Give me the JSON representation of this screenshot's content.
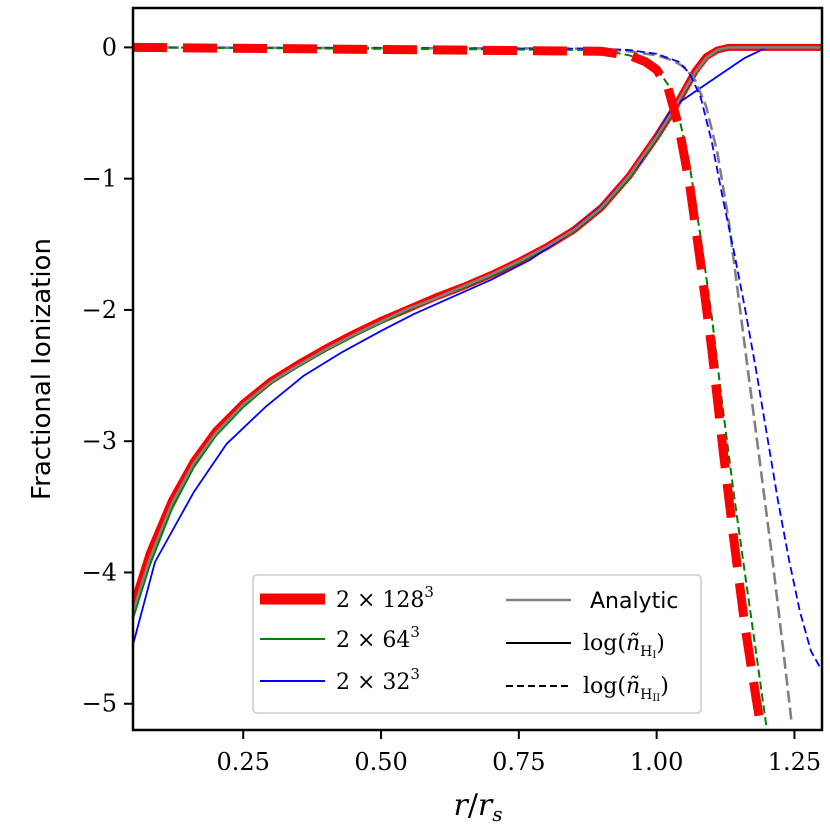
{
  "chart_data": {
    "type": "line",
    "title": "",
    "xlabel": "r/r_s",
    "ylabel": "Fractional Ionization",
    "xlim": [
      0.05,
      1.3
    ],
    "ylim": [
      -5.2,
      0.3
    ],
    "xticks": [
      0.25,
      0.5,
      0.75,
      1.0,
      1.25
    ],
    "xtick_labels": [
      "0.25",
      "0.50",
      "0.75",
      "1.00",
      "1.25"
    ],
    "yticks": [
      0,
      -1,
      -2,
      -3,
      -4,
      -5
    ],
    "ytick_labels": [
      "0",
      "−1",
      "−2",
      "−3",
      "−4",
      "−5"
    ],
    "colors": {
      "res128": "#ff0000",
      "res64": "#008000",
      "res32": "#0000ff",
      "analytic": "#808080"
    },
    "series": [
      {
        "name": "2 × 128³ neutral",
        "resolution": "res128",
        "quantity": "HI",
        "values": [
          [
            0.05,
            -4.25
          ],
          [
            0.08,
            -3.85
          ],
          [
            0.12,
            -3.45
          ],
          [
            0.16,
            -3.15
          ],
          [
            0.2,
            -2.92
          ],
          [
            0.25,
            -2.71
          ],
          [
            0.3,
            -2.54
          ],
          [
            0.35,
            -2.41
          ],
          [
            0.4,
            -2.29
          ],
          [
            0.45,
            -2.18
          ],
          [
            0.5,
            -2.08
          ],
          [
            0.55,
            -1.99
          ],
          [
            0.6,
            -1.9
          ],
          [
            0.65,
            -1.82
          ],
          [
            0.7,
            -1.73
          ],
          [
            0.75,
            -1.63
          ],
          [
            0.8,
            -1.52
          ],
          [
            0.85,
            -1.39
          ],
          [
            0.9,
            -1.22
          ],
          [
            0.95,
            -0.98
          ],
          [
            1.0,
            -0.68
          ],
          [
            1.03,
            -0.48
          ],
          [
            1.05,
            -0.33
          ],
          [
            1.07,
            -0.18
          ],
          [
            1.09,
            -0.07
          ],
          [
            1.11,
            -0.02
          ],
          [
            1.13,
            0.0
          ],
          [
            1.3,
            0.0
          ]
        ]
      },
      {
        "name": "2 × 64³ neutral",
        "resolution": "res64",
        "quantity": "HI",
        "values": [
          [
            0.05,
            -4.35
          ],
          [
            0.08,
            -3.95
          ],
          [
            0.12,
            -3.52
          ],
          [
            0.16,
            -3.2
          ],
          [
            0.2,
            -2.96
          ],
          [
            0.25,
            -2.74
          ],
          [
            0.3,
            -2.56
          ],
          [
            0.35,
            -2.43
          ],
          [
            0.4,
            -2.31
          ],
          [
            0.45,
            -2.2
          ],
          [
            0.5,
            -2.1
          ],
          [
            0.55,
            -2.0
          ],
          [
            0.6,
            -1.91
          ],
          [
            0.65,
            -1.83
          ],
          [
            0.7,
            -1.74
          ],
          [
            0.75,
            -1.64
          ],
          [
            0.8,
            -1.53
          ],
          [
            0.85,
            -1.4
          ],
          [
            0.9,
            -1.23
          ],
          [
            0.95,
            -1.0
          ],
          [
            1.0,
            -0.7
          ],
          [
            1.03,
            -0.49
          ],
          [
            1.05,
            -0.34
          ],
          [
            1.07,
            -0.2
          ],
          [
            1.09,
            -0.08
          ],
          [
            1.11,
            -0.03
          ],
          [
            1.13,
            0.0
          ],
          [
            1.3,
            0.0
          ]
        ]
      },
      {
        "name": "2 × 32³ neutral",
        "resolution": "res32",
        "quantity": "HI",
        "values": [
          [
            0.05,
            -4.55
          ],
          [
            0.09,
            -3.92
          ],
          [
            0.16,
            -3.39
          ],
          [
            0.22,
            -3.02
          ],
          [
            0.29,
            -2.74
          ],
          [
            0.36,
            -2.5
          ],
          [
            0.43,
            -2.32
          ],
          [
            0.5,
            -2.16
          ],
          [
            0.56,
            -2.03
          ],
          [
            0.63,
            -1.9
          ],
          [
            0.7,
            -1.77
          ],
          [
            0.77,
            -1.62
          ],
          [
            0.83,
            -1.45
          ],
          [
            0.9,
            -1.21
          ],
          [
            0.97,
            -0.88
          ],
          [
            1.03,
            -0.45
          ],
          [
            1.1,
            -0.25
          ],
          [
            1.16,
            -0.08
          ],
          [
            1.2,
            0.0
          ],
          [
            1.3,
            0.0
          ]
        ]
      },
      {
        "name": "Analytic neutral",
        "resolution": "analytic",
        "quantity": "HI",
        "values": [
          [
            0.05,
            -4.3
          ],
          [
            0.08,
            -3.9
          ],
          [
            0.12,
            -3.48
          ],
          [
            0.16,
            -3.17
          ],
          [
            0.2,
            -2.94
          ],
          [
            0.25,
            -2.72
          ],
          [
            0.3,
            -2.55
          ],
          [
            0.35,
            -2.42
          ],
          [
            0.4,
            -2.3
          ],
          [
            0.45,
            -2.19
          ],
          [
            0.5,
            -2.09
          ],
          [
            0.55,
            -1.99
          ],
          [
            0.6,
            -1.91
          ],
          [
            0.65,
            -1.82
          ],
          [
            0.7,
            -1.73
          ],
          [
            0.75,
            -1.63
          ],
          [
            0.8,
            -1.52
          ],
          [
            0.85,
            -1.39
          ],
          [
            0.9,
            -1.22
          ],
          [
            0.95,
            -0.98
          ],
          [
            1.0,
            -0.68
          ],
          [
            1.03,
            -0.48
          ],
          [
            1.05,
            -0.33
          ],
          [
            1.07,
            -0.19
          ],
          [
            1.09,
            -0.08
          ],
          [
            1.11,
            -0.02
          ],
          [
            1.13,
            0.0
          ],
          [
            1.3,
            0.0
          ]
        ]
      },
      {
        "name": "Analytic ionized",
        "resolution": "analytic",
        "quantity": "HII",
        "values": [
          [
            0.05,
            0.0
          ],
          [
            0.9,
            -0.01
          ],
          [
            0.95,
            -0.03
          ],
          [
            1.0,
            -0.06
          ],
          [
            1.03,
            -0.1
          ],
          [
            1.05,
            -0.15
          ],
          [
            1.07,
            -0.25
          ],
          [
            1.09,
            -0.45
          ],
          [
            1.11,
            -0.8
          ],
          [
            1.13,
            -1.3
          ],
          [
            1.15,
            -1.95
          ],
          [
            1.17,
            -2.6
          ],
          [
            1.19,
            -3.25
          ],
          [
            1.21,
            -3.9
          ],
          [
            1.23,
            -4.6
          ],
          [
            1.245,
            -5.15
          ]
        ]
      },
      {
        "name": "2 × 32³ ionized",
        "resolution": "res32",
        "quantity": "HII",
        "values": [
          [
            0.05,
            0.0
          ],
          [
            0.9,
            -0.01
          ],
          [
            0.95,
            -0.02
          ],
          [
            1.0,
            -0.05
          ],
          [
            1.04,
            -0.11
          ],
          [
            1.06,
            -0.2
          ],
          [
            1.08,
            -0.38
          ],
          [
            1.1,
            -0.72
          ],
          [
            1.12,
            -1.15
          ],
          [
            1.14,
            -1.55
          ],
          [
            1.16,
            -1.98
          ],
          [
            1.18,
            -2.45
          ],
          [
            1.2,
            -2.95
          ],
          [
            1.22,
            -3.45
          ],
          [
            1.24,
            -3.9
          ],
          [
            1.26,
            -4.3
          ],
          [
            1.28,
            -4.6
          ],
          [
            1.3,
            -4.75
          ]
        ]
      },
      {
        "name": "2 × 64³ ionized",
        "resolution": "res64",
        "quantity": "HII",
        "values": [
          [
            0.05,
            0.0
          ],
          [
            0.9,
            -0.02
          ],
          [
            0.95,
            -0.06
          ],
          [
            0.98,
            -0.1
          ],
          [
            1.0,
            -0.16
          ],
          [
            1.02,
            -0.28
          ],
          [
            1.04,
            -0.52
          ],
          [
            1.06,
            -0.9
          ],
          [
            1.08,
            -1.45
          ],
          [
            1.1,
            -2.05
          ],
          [
            1.12,
            -2.75
          ],
          [
            1.14,
            -3.4
          ],
          [
            1.16,
            -4.0
          ],
          [
            1.18,
            -4.6
          ],
          [
            1.2,
            -5.2
          ]
        ]
      },
      {
        "name": "2 × 128³ ionized",
        "resolution": "res128",
        "quantity": "HII",
        "values": [
          [
            0.05,
            0.0
          ],
          [
            0.9,
            -0.03
          ],
          [
            0.95,
            -0.06
          ],
          [
            0.98,
            -0.11
          ],
          [
            1.0,
            -0.17
          ],
          [
            1.02,
            -0.3
          ],
          [
            1.04,
            -0.6
          ],
          [
            1.06,
            -1.05
          ],
          [
            1.08,
            -1.65
          ],
          [
            1.1,
            -2.3
          ],
          [
            1.12,
            -3.05
          ],
          [
            1.14,
            -3.75
          ],
          [
            1.16,
            -4.4
          ],
          [
            1.18,
            -4.95
          ],
          [
            1.19,
            -5.2
          ]
        ]
      }
    ],
    "legend": {
      "position": "lower-center",
      "entries": [
        {
          "label": "2 × 128³",
          "resolution": "res128"
        },
        {
          "label": "2 × 64³",
          "resolution": "res64"
        },
        {
          "label": "2 × 32³",
          "resolution": "res32"
        },
        {
          "label": "Analytic",
          "resolution": "analytic"
        },
        {
          "label": "log(ñ_HI)",
          "style": "solid"
        },
        {
          "label": "log(ñ_HII)",
          "style": "dashed"
        }
      ]
    }
  }
}
